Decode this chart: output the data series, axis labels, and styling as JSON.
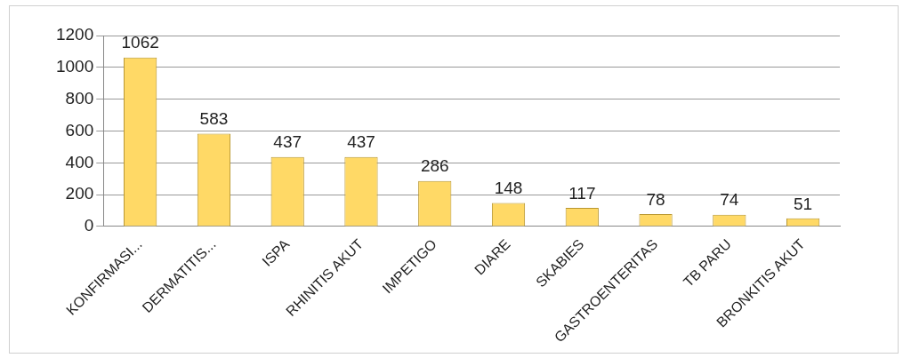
{
  "chart_data": {
    "type": "bar",
    "categories": [
      "KONFIRMASI...",
      "DERMATITIS...",
      "ISPA",
      "RHINITIS AKUT",
      "IMPETIGO",
      "DIARE",
      "SKABIES",
      "GASTROENTERITAS",
      "TB PARU",
      "BRONKITIS AKUT"
    ],
    "values": [
      1062,
      583,
      437,
      437,
      286,
      148,
      117,
      78,
      74,
      51
    ],
    "color": "#ffd966",
    "ylim": [
      0,
      1200
    ],
    "yticks": [
      0,
      200,
      400,
      600,
      800,
      1000,
      1200
    ],
    "grid": "y",
    "data_labels": true,
    "legend": false
  }
}
